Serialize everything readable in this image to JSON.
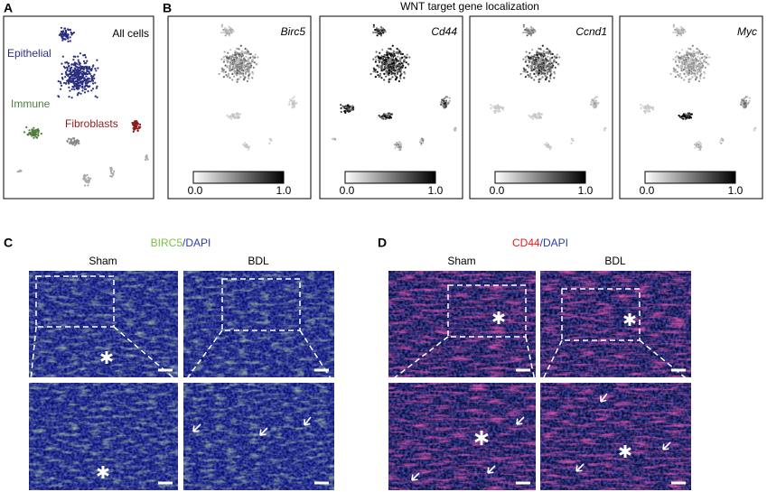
{
  "panel_a": {
    "label": "A",
    "title": "All cells",
    "clusters": [
      "Epithelial",
      "Immune",
      "Fibroblasts"
    ]
  },
  "panel_b": {
    "label": "B",
    "title": "WNT target gene localization",
    "maps": [
      {
        "gene": "Birc5",
        "scale_min": "0.0",
        "scale_max": "1.0"
      },
      {
        "gene": "Cd44",
        "scale_min": "0.0",
        "scale_max": "1.0"
      },
      {
        "gene": "Ccnd1",
        "scale_min": "0.0",
        "scale_max": "1.0"
      },
      {
        "gene": "Myc",
        "scale_min": "0.0",
        "scale_max": "1.0"
      }
    ]
  },
  "panel_c": {
    "label": "C",
    "stain": "BIRC5",
    "counterstain": "/DAPI",
    "columns": [
      "Sham",
      "BDL"
    ]
  },
  "panel_d": {
    "label": "D",
    "stain": "CD44",
    "counterstain": "/DAPI",
    "columns": [
      "Sham",
      "BDL"
    ]
  }
}
